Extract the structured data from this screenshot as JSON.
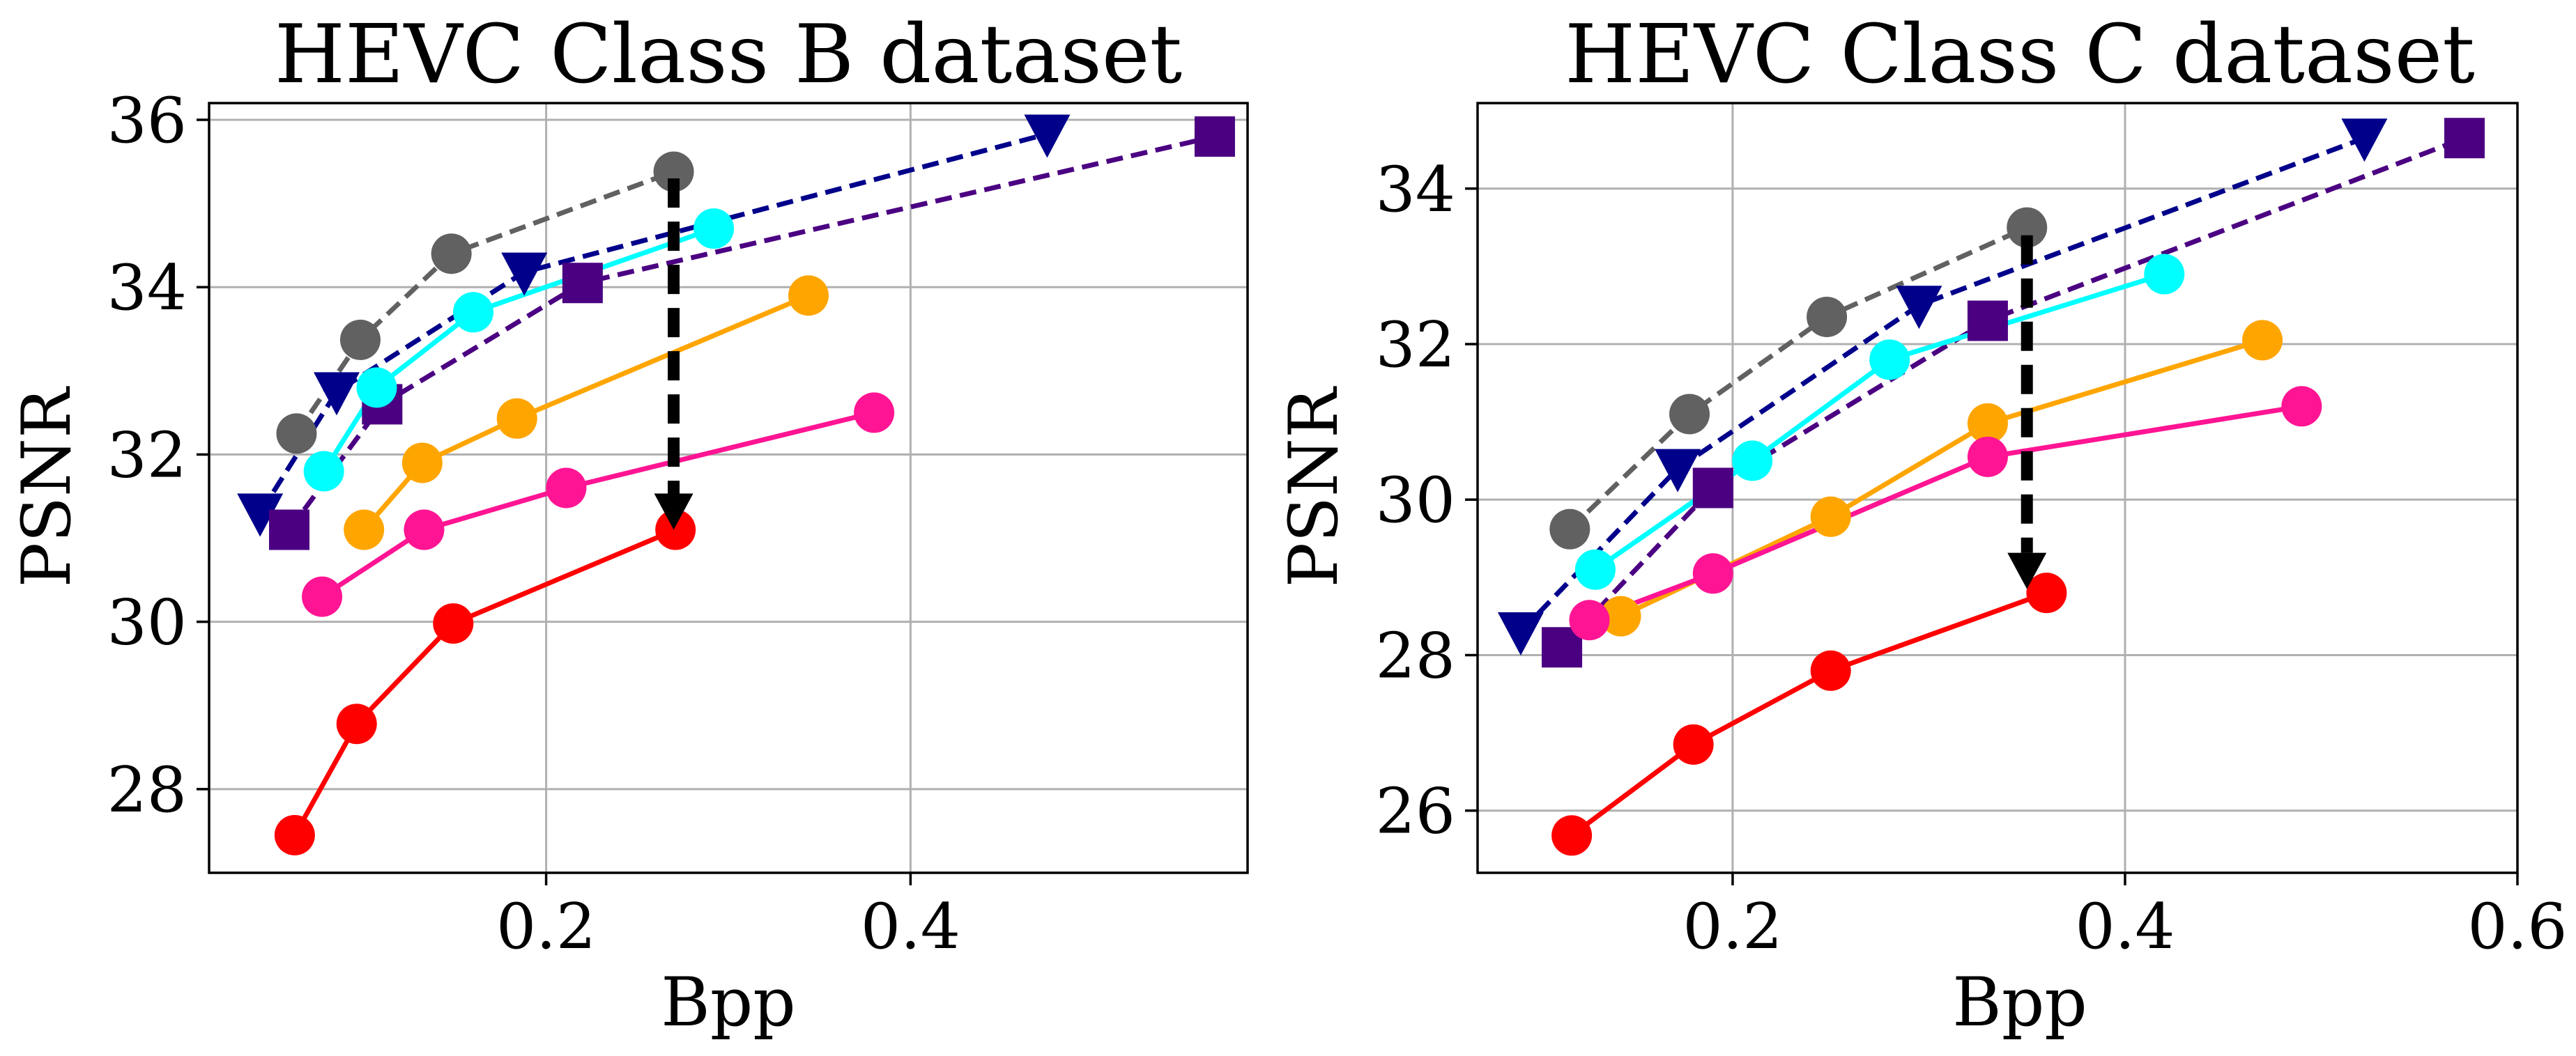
{
  "chart_data": [
    {
      "type": "line",
      "title": "HEVC Class B dataset",
      "xlabel": "Bpp",
      "ylabel": "PSNR",
      "xlim": [
        0.015,
        0.585
      ],
      "ylim": [
        27.0,
        36.2
      ],
      "xticks": [
        0.2,
        0.4
      ],
      "xtick_labels": [
        "0.2",
        "0.4"
      ],
      "yticks": [
        28,
        30,
        32,
        34,
        36
      ],
      "ytick_labels": [
        "28",
        "30",
        "32",
        "34",
        "36"
      ],
      "grid": true,
      "series": [
        {
          "name": "gray",
          "color": "#616161",
          "dashed": true,
          "marker": "circle",
          "x": [
            0.063,
            0.098,
            0.148,
            0.27
          ],
          "y": [
            32.25,
            33.37,
            34.4,
            35.38
          ]
        },
        {
          "name": "navy",
          "color": "#00008b",
          "dashed": true,
          "marker": "triangle-down",
          "x": [
            0.043,
            0.085,
            0.188,
            0.475
          ],
          "y": [
            31.3,
            32.75,
            34.18,
            35.83
          ]
        },
        {
          "name": "purple",
          "color": "#4b0082",
          "dashed": true,
          "marker": "square",
          "x": [
            0.059,
            0.11,
            0.22,
            0.567
          ],
          "y": [
            31.1,
            32.6,
            34.05,
            35.8
          ]
        },
        {
          "name": "cyan",
          "color": "#00ffff",
          "dashed": false,
          "marker": "circle",
          "x": [
            0.078,
            0.107,
            0.16,
            0.292
          ],
          "y": [
            31.8,
            32.8,
            33.7,
            34.7
          ]
        },
        {
          "name": "orange",
          "color": "#ffa500",
          "dashed": false,
          "marker": "circle",
          "x": [
            0.1,
            0.132,
            0.184,
            0.344
          ],
          "y": [
            31.1,
            31.9,
            32.43,
            33.9
          ]
        },
        {
          "name": "pink",
          "color": "#ff1493",
          "dashed": false,
          "marker": "circle",
          "x": [
            0.077,
            0.133,
            0.211,
            0.38
          ],
          "y": [
            30.3,
            31.1,
            31.6,
            32.5
          ]
        },
        {
          "name": "red",
          "color": "#ff0000",
          "dashed": false,
          "marker": "circle",
          "x": [
            0.062,
            0.096,
            0.149,
            0.271
          ],
          "y": [
            27.45,
            28.78,
            29.98,
            31.1
          ]
        }
      ],
      "annotations": [
        {
          "type": "arrow",
          "style": "dashed",
          "color": "#000000",
          "from": [
            0.27,
            35.3
          ],
          "to": [
            0.27,
            31.1
          ]
        }
      ]
    },
    {
      "type": "line",
      "title": "HEVC Class C dataset",
      "xlabel": "Bpp",
      "ylabel": "PSNR",
      "xlim": [
        0.07,
        0.6
      ],
      "ylim": [
        25.2,
        35.1
      ],
      "xticks": [
        0.2,
        0.4,
        0.6
      ],
      "xtick_labels": [
        "0.2",
        "0.4",
        "0.6"
      ],
      "yticks": [
        26,
        28,
        30,
        32,
        34
      ],
      "ytick_labels": [
        "26",
        "28",
        "30",
        "32",
        "34"
      ],
      "grid": true,
      "series": [
        {
          "name": "gray",
          "color": "#616161",
          "dashed": true,
          "marker": "circle",
          "x": [
            0.117,
            0.178,
            0.248,
            0.35
          ],
          "y": [
            29.62,
            31.1,
            32.35,
            33.5
          ]
        },
        {
          "name": "navy",
          "color": "#00008b",
          "dashed": true,
          "marker": "triangle-down",
          "x": [
            0.092,
            0.172,
            0.295,
            0.522
          ],
          "y": [
            28.3,
            30.4,
            32.5,
            34.65
          ]
        },
        {
          "name": "purple",
          "color": "#4b0082",
          "dashed": true,
          "marker": "square",
          "x": [
            0.113,
            0.19,
            0.33,
            0.573
          ],
          "y": [
            28.1,
            30.15,
            32.3,
            34.65
          ]
        },
        {
          "name": "cyan",
          "color": "#00ffff",
          "dashed": false,
          "marker": "circle",
          "x": [
            0.13,
            0.21,
            0.28,
            0.42
          ],
          "y": [
            29.1,
            30.5,
            31.8,
            32.9
          ]
        },
        {
          "name": "orange",
          "color": "#ffa500",
          "dashed": false,
          "marker": "circle",
          "x": [
            0.143,
            0.25,
            0.33,
            0.47
          ],
          "y": [
            28.5,
            29.78,
            30.98,
            32.05
          ]
        },
        {
          "name": "pink",
          "color": "#ff1493",
          "dashed": false,
          "marker": "circle",
          "x": [
            0.127,
            0.19,
            0.33,
            0.49
          ],
          "y": [
            28.45,
            29.05,
            30.55,
            31.2
          ]
        },
        {
          "name": "red",
          "color": "#ff0000",
          "dashed": false,
          "marker": "circle",
          "x": [
            0.118,
            0.18,
            0.25,
            0.36
          ],
          "y": [
            25.68,
            26.85,
            27.8,
            28.8
          ]
        }
      ],
      "annotations": [
        {
          "type": "arrow",
          "style": "dashed",
          "color": "#000000",
          "from": [
            0.35,
            33.4
          ],
          "to": [
            0.35,
            28.85
          ]
        }
      ]
    }
  ]
}
